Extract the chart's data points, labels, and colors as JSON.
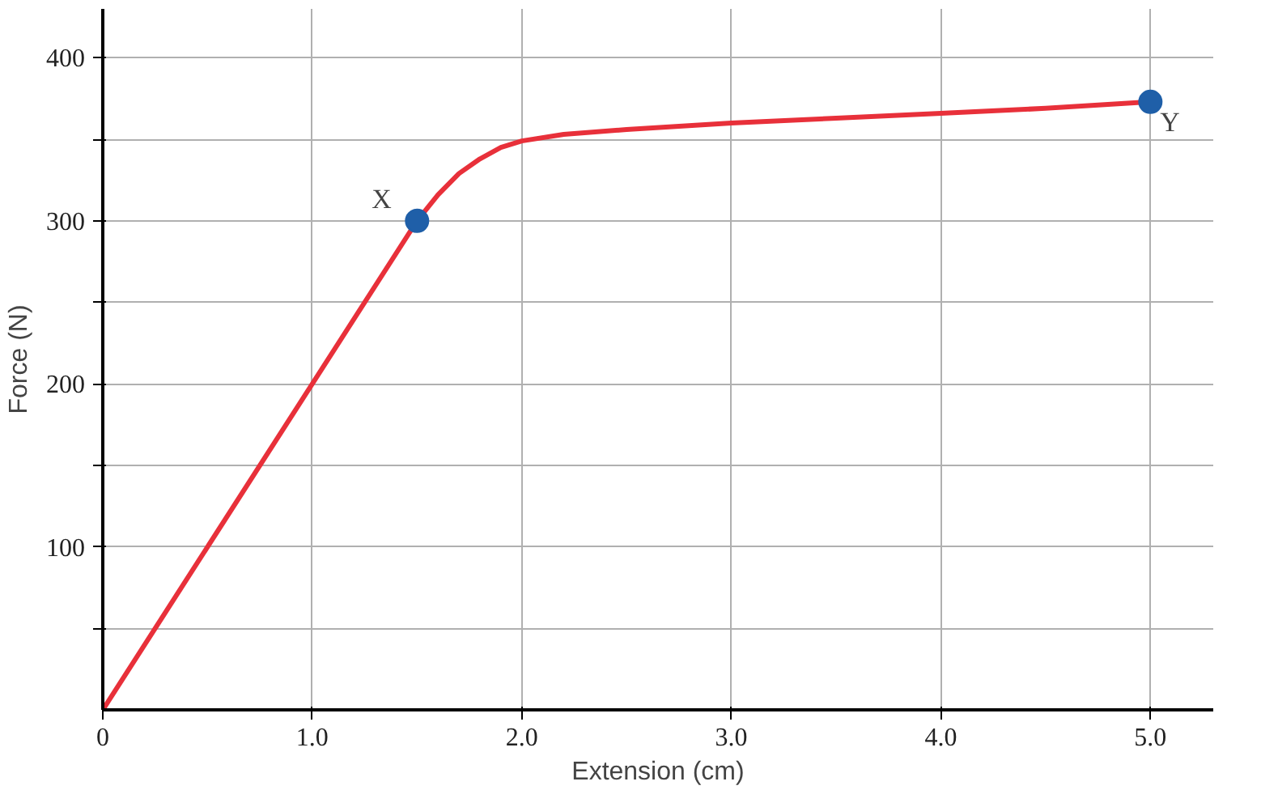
{
  "chart_data": {
    "type": "line",
    "xlabel": "Extension (cm)",
    "ylabel": "Force (N)",
    "xlim": [
      0,
      5.3
    ],
    "ylim": [
      0,
      430
    ],
    "xticks": [
      0,
      {
        "value": 1,
        "label": "1.0"
      },
      {
        "value": 2,
        "label": "2.0"
      },
      {
        "value": 3,
        "label": "3.0"
      },
      {
        "value": 4,
        "label": "4.0"
      },
      {
        "value": 5,
        "label": "5.0"
      }
    ],
    "yticks": [
      {
        "value": 50,
        "label": null
      },
      100,
      {
        "value": 150,
        "label": null
      },
      200,
      {
        "value": 250,
        "label": null
      },
      300,
      {
        "value": 350,
        "label": null
      },
      400
    ],
    "grid": true,
    "series": [
      {
        "color": "#e8303a",
        "x": [
          0,
          1.5,
          1.6,
          1.7,
          1.8,
          1.9,
          2.0,
          2.2,
          2.5,
          3.0,
          3.5,
          4.0,
          4.5,
          5.0
        ],
        "values": [
          0,
          300,
          316,
          329,
          338,
          345,
          349,
          353,
          356,
          360,
          363,
          366,
          369,
          373
        ]
      },
      {
        "type": "scatter",
        "color": "#1f5fa8",
        "marker": "circle",
        "x": [
          1.5,
          5.0
        ],
        "values": [
          300,
          373
        ]
      }
    ],
    "annotations": [
      {
        "text": "X",
        "x": 1.5,
        "y": 300
      },
      {
        "text": "Y",
        "x": 5.0,
        "y": 373
      }
    ]
  }
}
